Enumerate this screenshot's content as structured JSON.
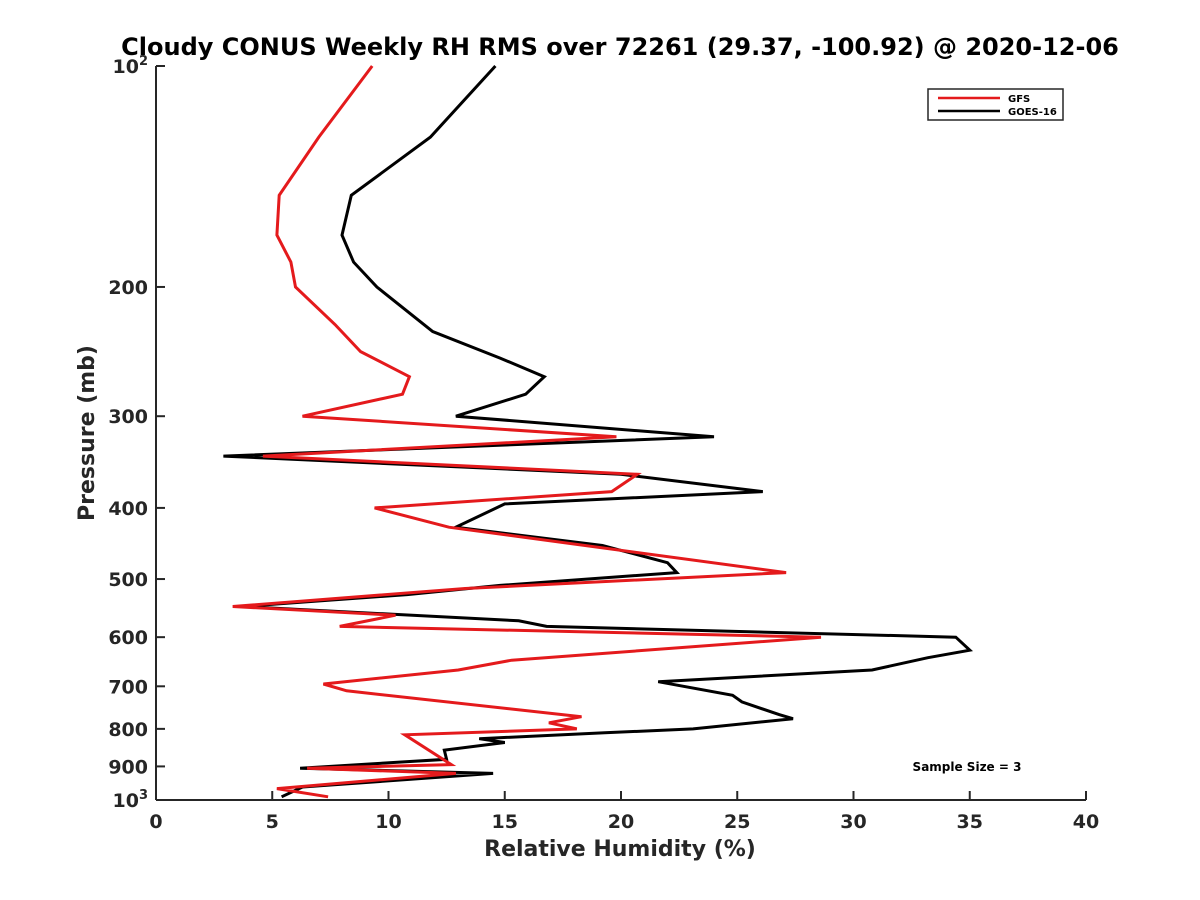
{
  "chart_data": {
    "type": "line",
    "title": "Cloudy CONUS Weekly RH RMS over 72261 (29.37, -100.92) @ 2020-12-06",
    "xlabel": "Relative Humidity (%)",
    "ylabel": "Pressure (mb)",
    "xlim": [
      0,
      40
    ],
    "ylim": [
      100,
      1000
    ],
    "y_scale": "log",
    "y_reversed": true,
    "grid": false,
    "legend_position": "top-right",
    "annotation": "Sample Size = 3",
    "x_ticks": [
      {
        "value": 0,
        "label": "0"
      },
      {
        "value": 5,
        "label": "5"
      },
      {
        "value": 10,
        "label": "10"
      },
      {
        "value": 15,
        "label": "15"
      },
      {
        "value": 20,
        "label": "20"
      },
      {
        "value": 25,
        "label": "25"
      },
      {
        "value": 30,
        "label": "30"
      },
      {
        "value": 35,
        "label": "35"
      },
      {
        "value": 40,
        "label": "40"
      }
    ],
    "y_ticks": [
      {
        "value": 100,
        "label": "10",
        "sup": "2"
      },
      {
        "value": 200,
        "label": "200",
        "sup": ""
      },
      {
        "value": 300,
        "label": "300",
        "sup": ""
      },
      {
        "value": 400,
        "label": "400",
        "sup": ""
      },
      {
        "value": 500,
        "label": "500",
        "sup": ""
      },
      {
        "value": 600,
        "label": "600",
        "sup": ""
      },
      {
        "value": 700,
        "label": "700",
        "sup": ""
      },
      {
        "value": 800,
        "label": "800",
        "sup": ""
      },
      {
        "value": 900,
        "label": "900",
        "sup": ""
      },
      {
        "value": 1000,
        "label": "10",
        "sup": "3"
      }
    ],
    "series": [
      {
        "name": "GFS",
        "color": "#e41a1c",
        "points": [
          [
            9.3,
            100
          ],
          [
            7.0,
            125
          ],
          [
            5.3,
            150
          ],
          [
            5.2,
            170
          ],
          [
            5.8,
            185
          ],
          [
            6.0,
            200
          ],
          [
            7.7,
            225
          ],
          [
            8.8,
            245
          ],
          [
            10.9,
            265
          ],
          [
            10.6,
            280
          ],
          [
            6.3,
            300
          ],
          [
            19.8,
            320
          ],
          [
            4.6,
            340
          ],
          [
            20.7,
            360
          ],
          [
            19.6,
            380
          ],
          [
            9.4,
            400
          ],
          [
            12.6,
            425
          ],
          [
            27.1,
            490
          ],
          [
            13.3,
            515
          ],
          [
            3.3,
            545
          ],
          [
            10.3,
            560
          ],
          [
            7.9,
            580
          ],
          [
            28.6,
            600
          ],
          [
            15.3,
            645
          ],
          [
            13.0,
            665
          ],
          [
            7.2,
            695
          ],
          [
            8.2,
            710
          ],
          [
            18.3,
            770
          ],
          [
            16.9,
            785
          ],
          [
            18.1,
            800
          ],
          [
            10.7,
            815
          ],
          [
            12.7,
            895
          ],
          [
            6.5,
            905
          ],
          [
            12.9,
            920
          ],
          [
            5.2,
            965
          ],
          [
            7.4,
            990
          ]
        ]
      },
      {
        "name": "GOES-16",
        "color": "#000000",
        "points": [
          [
            14.6,
            100
          ],
          [
            11.8,
            125
          ],
          [
            8.4,
            150
          ],
          [
            8.0,
            170
          ],
          [
            8.5,
            185
          ],
          [
            9.5,
            200
          ],
          [
            11.9,
            230
          ],
          [
            14.8,
            250
          ],
          [
            16.7,
            265
          ],
          [
            15.9,
            280
          ],
          [
            12.9,
            300
          ],
          [
            24.0,
            320
          ],
          [
            2.9,
            340
          ],
          [
            20.0,
            360
          ],
          [
            26.1,
            380
          ],
          [
            15.0,
            395
          ],
          [
            12.9,
            425
          ],
          [
            19.2,
            450
          ],
          [
            22.0,
            475
          ],
          [
            22.4,
            490
          ],
          [
            14.8,
            510
          ],
          [
            10.8,
            525
          ],
          [
            3.7,
            545
          ],
          [
            15.6,
            570
          ],
          [
            16.8,
            580
          ],
          [
            34.4,
            600
          ],
          [
            35.0,
            625
          ],
          [
            33.2,
            640
          ],
          [
            30.8,
            665
          ],
          [
            21.6,
            690
          ],
          [
            24.8,
            720
          ],
          [
            25.2,
            735
          ],
          [
            26.8,
            765
          ],
          [
            27.4,
            775
          ],
          [
            23.1,
            800
          ],
          [
            19.3,
            810
          ],
          [
            13.9,
            825
          ],
          [
            15.0,
            835
          ],
          [
            12.4,
            855
          ],
          [
            12.5,
            880
          ],
          [
            6.2,
            905
          ],
          [
            14.5,
            920
          ],
          [
            6.3,
            960
          ],
          [
            5.4,
            990
          ]
        ]
      }
    ]
  }
}
